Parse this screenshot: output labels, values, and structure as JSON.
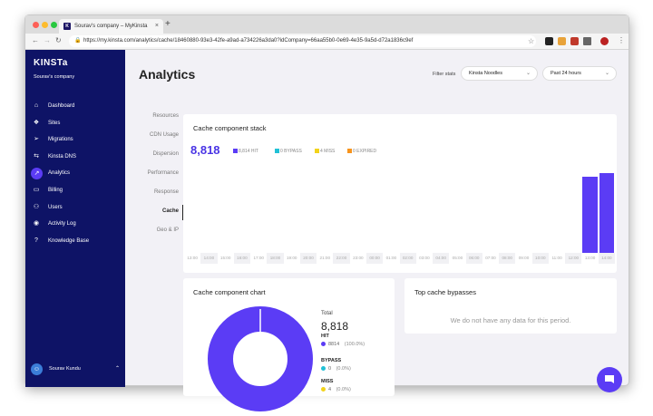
{
  "browser": {
    "tab_title": "Sourav's company – MyKinsta",
    "url": "https://my.kinsta.com/analytics/cache/18460880-93e3-42fe-a9ad-a734226a3da0?idCompany=66aa55b0-0e69-4e35-9a5d-d72a1836c9ef",
    "new_tab": "+",
    "close": "×"
  },
  "sidebar": {
    "logo": "KINSTa",
    "company": "Sourav's company",
    "items": [
      {
        "label": "Dashboard",
        "icon": "home-icon",
        "glyph": "⌂"
      },
      {
        "label": "Sites",
        "icon": "sites-icon",
        "glyph": "❖"
      },
      {
        "label": "Migrations",
        "icon": "migrations-icon",
        "glyph": "➢"
      },
      {
        "label": "Kinsta DNS",
        "icon": "dns-icon",
        "glyph": "⇆"
      },
      {
        "label": "Analytics",
        "icon": "analytics-icon",
        "glyph": "↗"
      },
      {
        "label": "Billing",
        "icon": "billing-icon",
        "glyph": "▭"
      },
      {
        "label": "Users",
        "icon": "users-icon",
        "glyph": "⚇"
      },
      {
        "label": "Activity Log",
        "icon": "activity-log-icon",
        "glyph": "◉"
      },
      {
        "label": "Knowledge Base",
        "icon": "knowledge-base-icon",
        "glyph": "?"
      }
    ],
    "active_index": 4,
    "user_name": "Sourav Kundu"
  },
  "header": {
    "title": "Analytics",
    "filter_label": "Filter stats",
    "site_select": "Kinsta Noodles",
    "period_select": "Past 24 hours"
  },
  "subnav": {
    "items": [
      "Resources",
      "CDN Usage",
      "Dispersion",
      "Performance",
      "Response",
      "Cache",
      "Geo & IP"
    ],
    "active_index": 5
  },
  "stack_card": {
    "title": "Cache component stack",
    "total": "8,818",
    "legend": [
      {
        "label": "8,814 HIT",
        "color": "#5b3cf5"
      },
      {
        "label": "0 BYPASS",
        "color": "#21c1d6"
      },
      {
        "label": "4 MISS",
        "color": "#f2d31b"
      },
      {
        "label": "0 EXPIRED",
        "color": "#f7941d"
      }
    ]
  },
  "chart_data": {
    "type": "bar",
    "title": "Cache component stack",
    "categories": [
      "13:00",
      "14:00",
      "15:00",
      "16:00",
      "17:00",
      "18:00",
      "19:00",
      "20:00",
      "21:00",
      "22:00",
      "23:00",
      "00:00",
      "01:00",
      "02:00",
      "03:00",
      "04:00",
      "05:00",
      "06:00",
      "07:00",
      "08:00",
      "09:00",
      "10:00",
      "11:00",
      "12:00",
      "13:00",
      "14:00"
    ],
    "series": [
      {
        "name": "HIT",
        "values": [
          0,
          0,
          0,
          0,
          0,
          0,
          0,
          0,
          0,
          0,
          0,
          0,
          0,
          0,
          0,
          0,
          0,
          0,
          0,
          0,
          0,
          0,
          0,
          0,
          4300,
          4514
        ]
      },
      {
        "name": "BYPASS",
        "values": [
          0,
          0,
          0,
          0,
          0,
          0,
          0,
          0,
          0,
          0,
          0,
          0,
          0,
          0,
          0,
          0,
          0,
          0,
          0,
          0,
          0,
          0,
          0,
          0,
          0,
          0
        ]
      },
      {
        "name": "MISS",
        "values": [
          0,
          0,
          0,
          0,
          0,
          0,
          0,
          0,
          0,
          0,
          0,
          0,
          0,
          0,
          0,
          0,
          0,
          0,
          0,
          0,
          0,
          0,
          0,
          0,
          2,
          2
        ]
      },
      {
        "name": "EXPIRED",
        "values": [
          0,
          0,
          0,
          0,
          0,
          0,
          0,
          0,
          0,
          0,
          0,
          0,
          0,
          0,
          0,
          0,
          0,
          0,
          0,
          0,
          0,
          0,
          0,
          0,
          0,
          0
        ]
      }
    ],
    "ymax": 4600
  },
  "component_chart": {
    "title": "Cache component chart",
    "total_label": "Total",
    "total": "8,818",
    "groups": [
      {
        "name": "HIT",
        "value": "8814",
        "pct": "(100.0%)",
        "color": "#5b3cf5"
      },
      {
        "name": "BYPASS",
        "value": "0",
        "pct": "(0.0%)",
        "color": "#21c1d6"
      },
      {
        "name": "MISS",
        "value": "4",
        "pct": "(0.0%)",
        "color": "#f2d31b"
      }
    ]
  },
  "bypass_card": {
    "title": "Top cache bypasses",
    "empty": "We do not have any data for this period."
  }
}
